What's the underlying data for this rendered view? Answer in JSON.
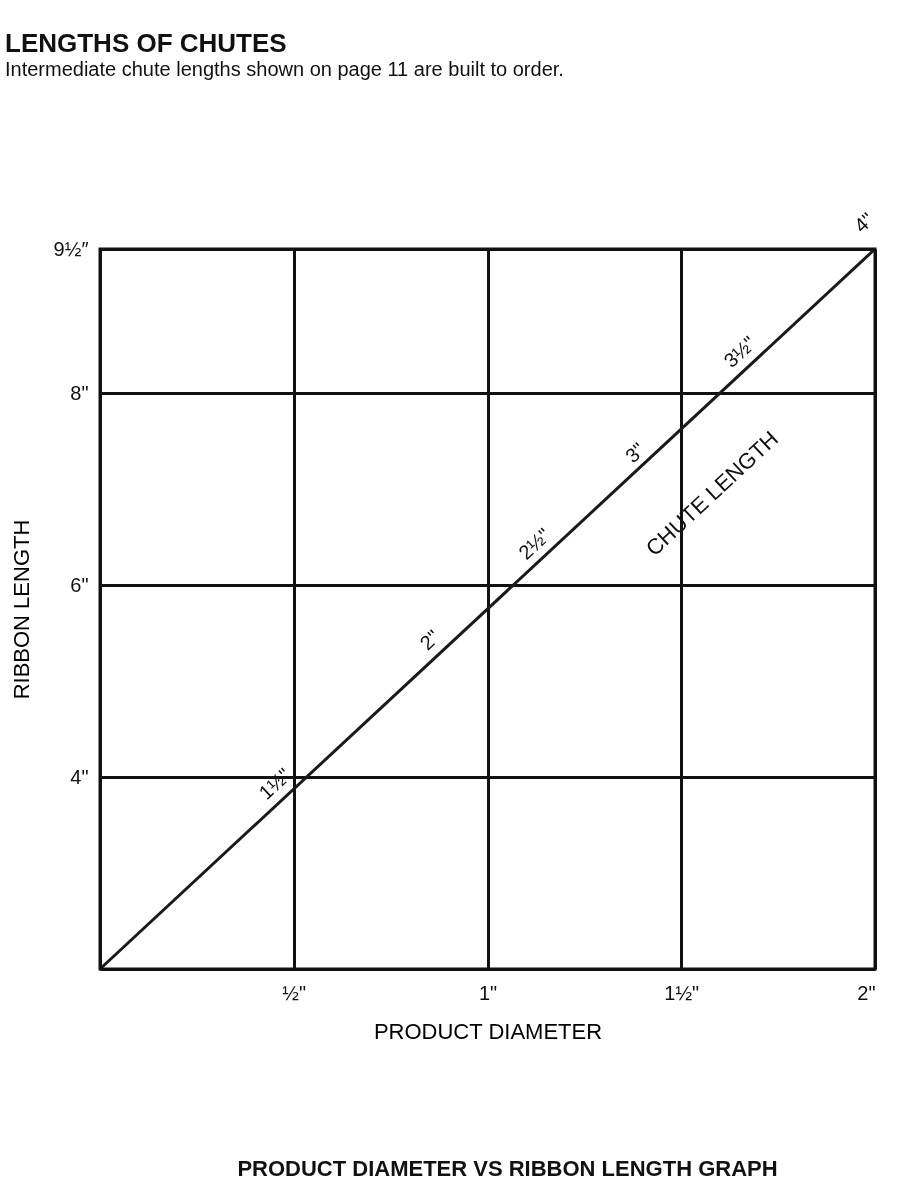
{
  "chart_data": {
    "type": "line",
    "title": "LENGTHS OF CHUTES",
    "subtitle": "Intermediate chute lengths shown on page 11 are built to order.",
    "xlabel": "PRODUCT DIAMETER",
    "ylabel": "RIBBON LENGTH",
    "series": [
      {
        "x": [
          0,
          2
        ],
        "values": [
          2,
          9.5
        ],
        "color": "#1a1a1a"
      }
    ],
    "xlim": [
      0,
      2
    ],
    "ylim": [
      2,
      9.5
    ],
    "xticks": [
      {
        "value": 0,
        "label": null
      },
      {
        "value": 0.5,
        "label": "½\""
      },
      {
        "value": 1,
        "label": "1\""
      },
      {
        "value": 1.5,
        "label": "1½\""
      },
      {
        "value": 2,
        "label": "2\""
      }
    ],
    "yticks": [
      {
        "value": 2,
        "label": null
      },
      {
        "value": 4,
        "label": "4\""
      },
      {
        "value": 6,
        "label": "6\""
      },
      {
        "value": 8,
        "label": "8\""
      },
      {
        "value": 9.5,
        "label": "9½″"
      }
    ],
    "grid": true,
    "annotations": [
      {
        "text": "1½\"",
        "x": 0.5,
        "y": 3.9
      },
      {
        "text": "2\"",
        "x": 0.9,
        "y": 5.4
      },
      {
        "text": "2½\"",
        "x": 1.17,
        "y": 6.4
      },
      {
        "text": "3\"",
        "x": 1.43,
        "y": 7.35
      },
      {
        "text": "3½\"",
        "x": 1.7,
        "y": 8.4
      },
      {
        "text": "4\"",
        "x": 2,
        "y": 9.5
      },
      "CHUTE LENGTH",
      "PRODUCT DIAMETER VS RIBBON LENGTH GRAPH"
    ]
  }
}
